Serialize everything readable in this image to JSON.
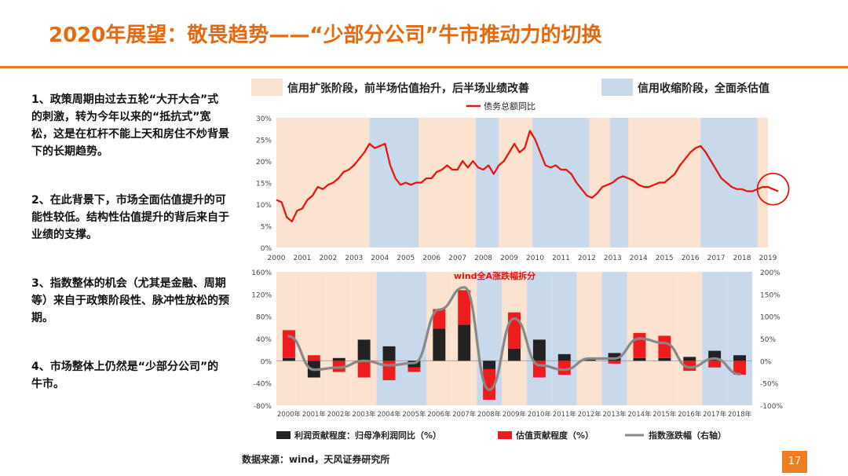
{
  "title": "2020年展望：敬畏趋势——“少部分公司”牛市推动力的切换",
  "bullets": [
    "1、政策周期由过去五轮“大开大合”式的刺激，转为今年以来的“抵抗式”宽松，这是在杠杆不能上天和房住不炒背景下的长期趋势。",
    "2、在此背景下，市场全面估值提升的可能性较低。结构性估值提升的背后来自于业绩的支撑。",
    "3、指数整体的机会（尤其是金融、周期等）来自于政策阶段性、脉冲性放松的预期。",
    "4、市场整体上仍然是“少部分公司”的牛市。"
  ],
  "source": "数据来源：wind，天风证券研究所",
  "page_number": "17",
  "colors": {
    "accent": "#ef7d22",
    "expansion": "#fbe3d0",
    "contraction": "#c9d9ec",
    "line": "#e8120c",
    "profit": "#222222",
    "valuation": "#ee1c1c",
    "index": "#888888"
  },
  "chart_data": [
    {
      "type": "line",
      "legend_top": [
        {
          "label": "信用扩张阶段，前半场估值抬升，后半场业绩改善",
          "color": "#fbe3d0"
        },
        {
          "label": "信用收缩阶段，全面杀估值",
          "color": "#c9d9ec"
        }
      ],
      "series_name": "债务总额同比",
      "x_ticks": [
        "2000",
        "2001",
        "2002",
        "2003",
        "2004",
        "2005",
        "2006",
        "2007",
        "2008",
        "2009",
        "2010",
        "2011",
        "2012",
        "2013",
        "2014",
        "2015",
        "2016",
        "2017",
        "2018",
        "2019"
      ],
      "y_ticks": [
        "0%",
        "5%",
        "10%",
        "15%",
        "20%",
        "25%",
        "30%"
      ],
      "ylim": [
        0,
        30
      ],
      "xlim": [
        2000,
        2019
      ],
      "contraction_periods": [
        [
          2003.6,
          2005.5
        ],
        [
          2007.7,
          2008.6
        ],
        [
          2009.9,
          2012.1
        ],
        [
          2012.9,
          2013.6
        ],
        [
          2016.4,
          2018.6
        ]
      ],
      "x": [
        2000.0,
        2000.2,
        2000.4,
        2000.6,
        2000.8,
        2001.0,
        2001.2,
        2001.4,
        2001.6,
        2001.8,
        2002.0,
        2002.2,
        2002.4,
        2002.6,
        2002.8,
        2003.0,
        2003.2,
        2003.4,
        2003.6,
        2003.8,
        2004.0,
        2004.2,
        2004.4,
        2004.6,
        2004.8,
        2005.0,
        2005.2,
        2005.4,
        2005.6,
        2005.8,
        2006.0,
        2006.2,
        2006.4,
        2006.6,
        2006.8,
        2007.0,
        2007.2,
        2007.4,
        2007.6,
        2007.8,
        2008.0,
        2008.2,
        2008.4,
        2008.6,
        2008.8,
        2009.0,
        2009.2,
        2009.4,
        2009.6,
        2009.8,
        2010.0,
        2010.2,
        2010.4,
        2010.6,
        2010.8,
        2011.0,
        2011.2,
        2011.4,
        2011.6,
        2011.8,
        2012.0,
        2012.2,
        2012.4,
        2012.6,
        2012.8,
        2013.0,
        2013.2,
        2013.4,
        2013.6,
        2013.8,
        2014.0,
        2014.2,
        2014.4,
        2014.6,
        2014.8,
        2015.0,
        2015.2,
        2015.4,
        2015.6,
        2015.8,
        2016.0,
        2016.2,
        2016.4,
        2016.6,
        2016.8,
        2017.0,
        2017.2,
        2017.4,
        2017.6,
        2017.8,
        2018.0,
        2018.2,
        2018.4,
        2018.6,
        2018.8,
        2019.0,
        2019.2,
        2019.4
      ],
      "values": [
        11,
        10.5,
        7,
        6,
        8.5,
        9,
        11,
        12,
        14,
        13.5,
        14.5,
        15,
        16,
        17.5,
        18,
        19,
        20.5,
        22,
        24,
        23,
        23.5,
        24,
        19,
        16,
        14.5,
        15,
        14.5,
        15,
        15,
        16,
        16,
        17.5,
        18,
        19,
        18,
        18,
        20,
        18.5,
        20,
        18.5,
        18,
        19,
        17,
        19,
        20,
        22,
        24,
        22,
        23,
        27,
        25,
        22,
        19,
        18.5,
        19,
        18,
        18,
        17,
        15,
        13.5,
        12,
        11.5,
        12.5,
        14,
        14.5,
        15,
        16,
        16.5,
        16,
        15.5,
        14.5,
        14,
        14,
        14.5,
        15,
        15,
        16,
        17,
        19,
        20.5,
        22,
        23,
        23.5,
        22,
        20,
        18,
        16,
        15,
        14,
        13.5,
        13.5,
        13,
        13,
        13.5,
        14,
        14,
        13.5,
        13
      ]
    },
    {
      "type": "bar",
      "title": "wind全A涨跌幅拆分",
      "categories": [
        "2000年",
        "2001年",
        "2002年",
        "2003年",
        "2004年",
        "2005年",
        "2006年",
        "2007年",
        "2008年",
        "2009年",
        "2010年",
        "2011年",
        "2012年",
        "2013年",
        "2014年",
        "2015年",
        "2016年",
        "2017年",
        "2018年"
      ],
      "y_left_ticks": [
        "-80%",
        "-40%",
        "0%",
        "40%",
        "80%",
        "120%",
        "160%"
      ],
      "y_right_ticks": [
        "-100%",
        "-50%",
        "0%",
        "50%",
        "100%",
        "150%",
        "200%"
      ],
      "ylim_left": [
        -80,
        160
      ],
      "ylim_right": [
        -100,
        200
      ],
      "series": [
        {
          "name": "利润贡献程度：归母净利润同比（%）",
          "values": [
            5,
            -30,
            5,
            38,
            26,
            -12,
            58,
            65,
            -15,
            22,
            38,
            12,
            2,
            14,
            5,
            5,
            7,
            18,
            10
          ]
        },
        {
          "name": "估值贡献程度（%）",
          "values": [
            50,
            10,
            -20,
            -30,
            -35,
            -8,
            35,
            62,
            -55,
            65,
            -30,
            -25,
            3,
            -5,
            45,
            40,
            -18,
            -12,
            -25
          ]
        },
        {
          "name": "指数涨跌幅（右轴）",
          "values": [
            55,
            -20,
            -15,
            0,
            -10,
            -5,
            115,
            165,
            -65,
            95,
            -10,
            -20,
            5,
            5,
            50,
            40,
            -15,
            5,
            -30
          ]
        }
      ]
    }
  ]
}
